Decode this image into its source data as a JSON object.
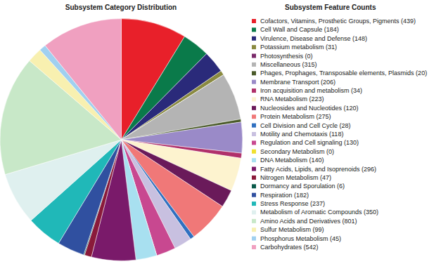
{
  "chart_data": {
    "type": "pie",
    "title": "Subsystem Category Distribution",
    "annotations": [
      "Subsystem Feature Counts"
    ],
    "legend": "right",
    "categories": [
      "Cofactors, Vitamins, Prosthetic Groups, Pigments (439)",
      "Cell Wall and Capsule (184)",
      "Virulence, Disease and Defense (148)",
      "Potassium metabolism (31)",
      "Photosynthesis (0)",
      "Miscellaneous (315)",
      "Phages, Prophages, Transposable elements, Plasmids (20)",
      "Membrane Transport (206)",
      "Iron acquisition and metabolism (34)",
      "RNA Metabolism (223)",
      "Nucleosides and Nucleotides (120)",
      "Protein Metabolism (275)",
      "Cell Division and Cell Cycle (28)",
      "Motility and Chemotaxis (118)",
      "Regulation and Cell signaling (130)",
      "Secondary Metabolism (0)",
      "DNA Metabolism (140)",
      "Fatty Acids, Lipids, and Isoprenoids (296)",
      "Nitrogen Metabolism (47)",
      "Dormancy and Sporulation (6)",
      "Respiration (182)",
      "Stress Response (237)",
      "Metabolism of Aromatic Compounds (350)",
      "Amino Acids and Derivatives (801)",
      "Sulfur Metabolism (99)",
      "Phosphorus Metabolism (45)",
      "Carbohydrates (542)"
    ],
    "values": [
      439,
      184,
      148,
      31,
      0,
      315,
      20,
      206,
      34,
      223,
      120,
      275,
      28,
      118,
      130,
      0,
      140,
      296,
      47,
      6,
      182,
      237,
      350,
      801,
      99,
      45,
      542
    ],
    "colors": [
      "#e8202a",
      "#0a7a4a",
      "#2a2a7a",
      "#8a8a40",
      "#7a2a6a",
      "#b4b4b4",
      "#4a5a2a",
      "#9a8ac8",
      "#b0306a",
      "#fdf3cf",
      "#6a1a5a",
      "#f07878",
      "#3070c0",
      "#c8c0e0",
      "#c84890",
      "#f0e030",
      "#a8e0f0",
      "#7a1a6a",
      "#8a1a3a",
      "#0a5a4a",
      "#3050a0",
      "#20b8b8",
      "#dff0ef",
      "#c8e8c8",
      "#f8f0b0",
      "#a0d0f0",
      "#f0a0c0"
    ]
  }
}
